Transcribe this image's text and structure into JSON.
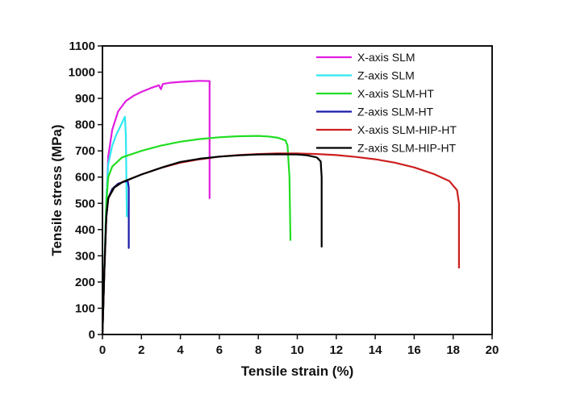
{
  "chart_data": {
    "type": "line",
    "title": "",
    "xlabel": "Tensile strain (%)",
    "ylabel": "Tensile stress (MPa)",
    "xlim": [
      0,
      20
    ],
    "ylim": [
      0,
      1100
    ],
    "xticks": [
      0,
      2,
      4,
      6,
      8,
      10,
      12,
      14,
      16,
      18,
      20
    ],
    "yticks": [
      0,
      100,
      200,
      300,
      400,
      500,
      600,
      700,
      800,
      900,
      1000,
      1100
    ],
    "grid": false,
    "legend_position": "top-right",
    "series": [
      {
        "name": "X-axis SLM",
        "color": "#e01ee0",
        "points": [
          [
            0,
            0
          ],
          [
            0.1,
            250
          ],
          [
            0.2,
            500
          ],
          [
            0.3,
            680
          ],
          [
            0.5,
            780
          ],
          [
            0.8,
            850
          ],
          [
            1.2,
            890
          ],
          [
            1.6,
            910
          ],
          [
            2.0,
            925
          ],
          [
            2.5,
            940
          ],
          [
            2.9,
            950
          ],
          [
            3.0,
            935
          ],
          [
            3.1,
            955
          ],
          [
            3.5,
            960
          ],
          [
            4.0,
            963
          ],
          [
            4.5,
            965
          ],
          [
            5.0,
            967
          ],
          [
            5.5,
            966
          ],
          [
            5.5,
            520
          ]
        ]
      },
      {
        "name": "Z-axis SLM",
        "color": "#2ee8f0",
        "points": [
          [
            0,
            0
          ],
          [
            0.1,
            260
          ],
          [
            0.2,
            520
          ],
          [
            0.3,
            650
          ],
          [
            0.5,
            720
          ],
          [
            0.7,
            760
          ],
          [
            0.9,
            790
          ],
          [
            1.05,
            815
          ],
          [
            1.15,
            830
          ],
          [
            1.2,
            760
          ],
          [
            1.25,
            450
          ]
        ]
      },
      {
        "name": "X-axis SLM-HT",
        "color": "#22dd22",
        "points": [
          [
            0,
            0
          ],
          [
            0.1,
            250
          ],
          [
            0.2,
            500
          ],
          [
            0.3,
            600
          ],
          [
            0.5,
            640
          ],
          [
            1,
            675
          ],
          [
            2,
            700
          ],
          [
            3,
            720
          ],
          [
            4,
            735
          ],
          [
            5,
            745
          ],
          [
            6,
            752
          ],
          [
            7,
            756
          ],
          [
            8,
            757
          ],
          [
            8.5,
            755
          ],
          [
            9,
            750
          ],
          [
            9.4,
            740
          ],
          [
            9.5,
            720
          ],
          [
            9.6,
            600
          ],
          [
            9.65,
            360
          ]
        ]
      },
      {
        "name": "Z-axis SLM-HT",
        "color": "#1a1aaa",
        "points": [
          [
            0,
            0
          ],
          [
            0.1,
            250
          ],
          [
            0.2,
            450
          ],
          [
            0.3,
            520
          ],
          [
            0.5,
            555
          ],
          [
            0.8,
            575
          ],
          [
            1.1,
            582
          ],
          [
            1.3,
            585
          ],
          [
            1.35,
            560
          ],
          [
            1.35,
            330
          ]
        ]
      },
      {
        "name": "X-axis SLM-HIP-HT",
        "color": "#cc2020",
        "points": [
          [
            0,
            0
          ],
          [
            0.1,
            250
          ],
          [
            0.2,
            450
          ],
          [
            0.3,
            520
          ],
          [
            0.6,
            560
          ],
          [
            1,
            580
          ],
          [
            2,
            610
          ],
          [
            3,
            635
          ],
          [
            4,
            655
          ],
          [
            5,
            668
          ],
          [
            6,
            678
          ],
          [
            7,
            684
          ],
          [
            8,
            688
          ],
          [
            9,
            690
          ],
          [
            10,
            690
          ],
          [
            11,
            688
          ],
          [
            12,
            684
          ],
          [
            13,
            677
          ],
          [
            14,
            668
          ],
          [
            15,
            655
          ],
          [
            16,
            637
          ],
          [
            17,
            612
          ],
          [
            17.8,
            585
          ],
          [
            18.2,
            550
          ],
          [
            18.3,
            500
          ],
          [
            18.3,
            255
          ]
        ]
      },
      {
        "name": "Z-axis SLM-HIP-HT",
        "color": "#000000",
        "points": [
          [
            0,
            0
          ],
          [
            0.1,
            250
          ],
          [
            0.2,
            450
          ],
          [
            0.3,
            520
          ],
          [
            0.6,
            560
          ],
          [
            1,
            580
          ],
          [
            2,
            610
          ],
          [
            3,
            635
          ],
          [
            3.2,
            640
          ],
          [
            4,
            658
          ],
          [
            5,
            670
          ],
          [
            6,
            678
          ],
          [
            7,
            683
          ],
          [
            8,
            686
          ],
          [
            9,
            687
          ],
          [
            10,
            686
          ],
          [
            10.5,
            683
          ],
          [
            11,
            675
          ],
          [
            11.2,
            660
          ],
          [
            11.25,
            600
          ],
          [
            11.25,
            335
          ]
        ]
      }
    ]
  }
}
